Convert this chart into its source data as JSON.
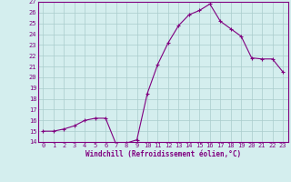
{
  "x": [
    0,
    1,
    2,
    3,
    4,
    5,
    6,
    7,
    8,
    9,
    10,
    11,
    12,
    13,
    14,
    15,
    16,
    17,
    18,
    19,
    20,
    21,
    22,
    23
  ],
  "y": [
    15,
    15,
    15.2,
    15.5,
    16,
    16.2,
    16.2,
    13.8,
    13.9,
    14.2,
    18.5,
    21.2,
    23.2,
    24.8,
    25.8,
    26.2,
    26.8,
    25.2,
    24.5,
    23.8,
    21.8,
    21.7,
    21.7,
    20.5
  ],
  "ylim": [
    14,
    27
  ],
  "xlim": [
    -0.5,
    23.5
  ],
  "yticks": [
    14,
    15,
    16,
    17,
    18,
    19,
    20,
    21,
    22,
    23,
    24,
    25,
    26,
    27
  ],
  "xticks": [
    0,
    1,
    2,
    3,
    4,
    5,
    6,
    7,
    8,
    9,
    10,
    11,
    12,
    13,
    14,
    15,
    16,
    17,
    18,
    19,
    20,
    21,
    22,
    23
  ],
  "xlabel": "Windchill (Refroidissement éolien,°C)",
  "line_color": "#800080",
  "marker_color": "#800080",
  "bg_color": "#d4eeee",
  "grid_color": "#aacccc",
  "axis_color": "#800080",
  "tick_color": "#800080",
  "label_color": "#800080",
  "tick_fontsize": 5,
  "label_fontsize": 5.5
}
